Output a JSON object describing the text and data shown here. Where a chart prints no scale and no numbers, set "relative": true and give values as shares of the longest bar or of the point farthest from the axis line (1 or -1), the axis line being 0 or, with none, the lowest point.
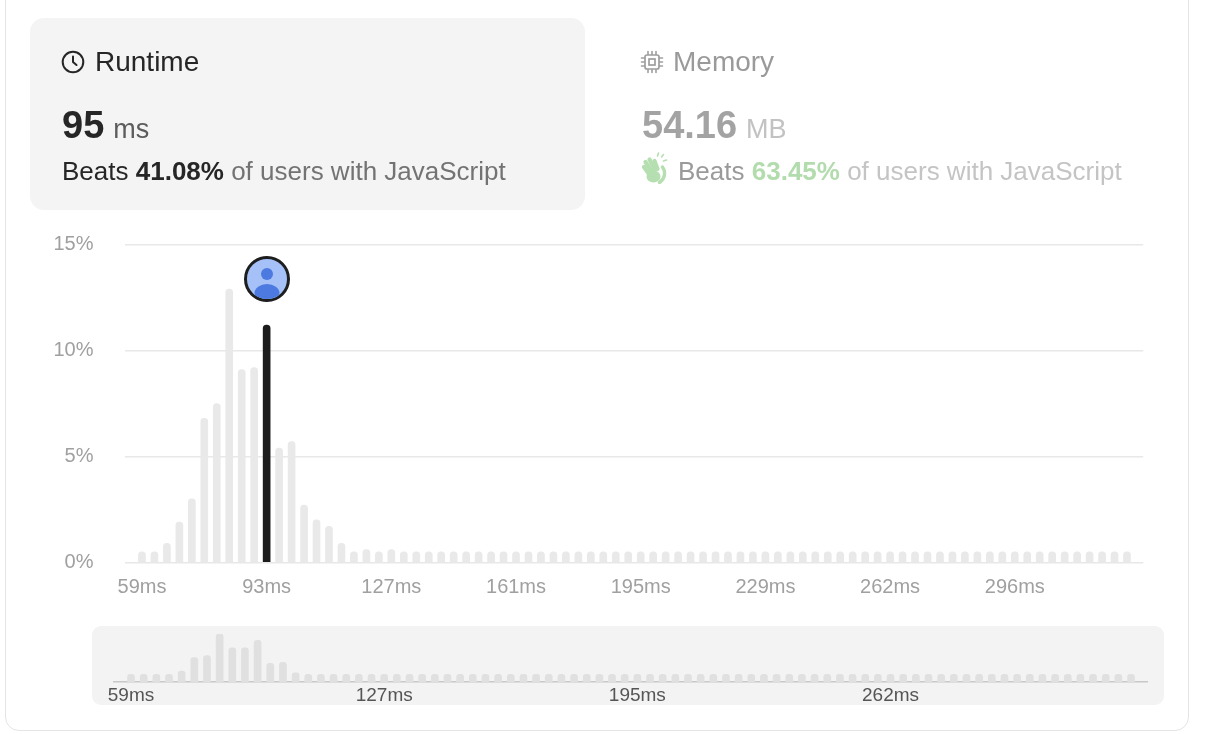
{
  "chart_data": [
    {
      "type": "other",
      "title": "Runtime",
      "annotations": [
        "95 ms",
        "Beats 41.08% of users with JavaScript"
      ]
    },
    {
      "type": "other",
      "title": "Memory",
      "annotations": [
        "54.16 MB",
        "Beats 63.45% of users with JavaScript"
      ]
    },
    {
      "type": "bar",
      "categories": [
        "59ms",
        null,
        null,
        null,
        null,
        null,
        null,
        null,
        null,
        null,
        "93ms",
        null,
        null,
        null,
        null,
        null,
        null,
        null,
        null,
        null,
        "127ms",
        null,
        null,
        null,
        null,
        null,
        null,
        null,
        null,
        null,
        "161ms",
        null,
        null,
        null,
        null,
        null,
        null,
        null,
        null,
        null,
        "195ms",
        null,
        null,
        null,
        null,
        null,
        null,
        null,
        null,
        null,
        "229ms",
        null,
        null,
        null,
        null,
        null,
        null,
        null,
        null,
        null,
        "262ms",
        null,
        null,
        null,
        null,
        null,
        null,
        null,
        null,
        null,
        "296ms",
        null,
        null,
        null,
        null,
        null,
        null,
        null,
        null,
        null
      ],
      "values": [
        0.5,
        0.5,
        0.9,
        1.9,
        3.0,
        6.8,
        7.5,
        12.9,
        9.1,
        9.2,
        11.2,
        5.4,
        5.7,
        2.7,
        2.0,
        1.7,
        0.9,
        0.5,
        0.6,
        0.5,
        0.6,
        0.5,
        0.5,
        0.5,
        0.5,
        0.5,
        0.5,
        0.5,
        0.5,
        0.5,
        0.5,
        0.5,
        0.5,
        0.5,
        0.5,
        0.5,
        0.5,
        0.5,
        0.5,
        0.5,
        0.5,
        0.5,
        0.5,
        0.5,
        0.5,
        0.5,
        0.5,
        0.5,
        0.5,
        0.5,
        0.5,
        0.5,
        0.5,
        0.5,
        0.5,
        0.5,
        0.5,
        0.5,
        0.5,
        0.5,
        0.5,
        0.5,
        0.5,
        0.5,
        0.5,
        0.5,
        0.5,
        0.5,
        0.5,
        0.5,
        0.5,
        0.5,
        0.5,
        0.5,
        0.5,
        0.5,
        0.5,
        0.5,
        0.5,
        0.5
      ],
      "colors": [
        "#e9e9e9",
        "#e9e9e9",
        "#e9e9e9",
        "#e9e9e9",
        "#e9e9e9",
        "#e9e9e9",
        "#e9e9e9",
        "#e9e9e9",
        "#e9e9e9",
        "#e9e9e9",
        "#1c1c1c",
        "#e9e9e9",
        "#e9e9e9",
        "#e9e9e9",
        "#e9e9e9",
        "#e9e9e9",
        "#e9e9e9",
        "#e9e9e9",
        "#e9e9e9",
        "#e9e9e9",
        "#e9e9e9",
        "#e9e9e9",
        "#e9e9e9",
        "#e9e9e9",
        "#e9e9e9",
        "#e9e9e9",
        "#e9e9e9",
        "#e9e9e9",
        "#e9e9e9",
        "#e9e9e9",
        "#e9e9e9",
        "#e9e9e9",
        "#e9e9e9",
        "#e9e9e9",
        "#e9e9e9",
        "#e9e9e9",
        "#e9e9e9",
        "#e9e9e9",
        "#e9e9e9",
        "#e9e9e9",
        "#e9e9e9",
        "#e9e9e9",
        "#e9e9e9",
        "#e9e9e9",
        "#e9e9e9",
        "#e9e9e9",
        "#e9e9e9",
        "#e9e9e9",
        "#e9e9e9",
        "#e9e9e9",
        "#e9e9e9",
        "#e9e9e9",
        "#e9e9e9",
        "#e9e9e9",
        "#e9e9e9",
        "#e9e9e9",
        "#e9e9e9",
        "#e9e9e9",
        "#e9e9e9",
        "#e9e9e9",
        "#e9e9e9",
        "#e9e9e9",
        "#e9e9e9",
        "#e9e9e9",
        "#e9e9e9",
        "#e9e9e9",
        "#e9e9e9",
        "#e9e9e9",
        "#e9e9e9",
        "#e9e9e9",
        "#e9e9e9",
        "#e9e9e9",
        "#e9e9e9",
        "#e9e9e9",
        "#e9e9e9",
        "#e9e9e9",
        "#e9e9e9",
        "#e9e9e9",
        "#e9e9e9",
        "#e9e9e9"
      ],
      "ylim": [
        0,
        15
      ],
      "yticks": [
        {
          "value": 0,
          "label": "0%"
        },
        {
          "value": 5,
          "label": "5%"
        },
        {
          "value": 10,
          "label": "10%"
        },
        {
          "value": 15,
          "label": "15%"
        }
      ],
      "grid": "y"
    },
    {
      "type": "bar",
      "relative": true,
      "categories": [
        "59ms",
        null,
        null,
        null,
        null,
        null,
        null,
        null,
        null,
        null,
        null,
        null,
        null,
        null,
        null,
        null,
        null,
        null,
        null,
        null,
        "127ms",
        null,
        null,
        null,
        null,
        null,
        null,
        null,
        null,
        null,
        null,
        null,
        null,
        null,
        null,
        null,
        null,
        null,
        null,
        null,
        "195ms",
        null,
        null,
        null,
        null,
        null,
        null,
        null,
        null,
        null,
        null,
        null,
        null,
        null,
        null,
        null,
        null,
        null,
        null,
        null,
        "262ms",
        null,
        null,
        null,
        null,
        null,
        null,
        null,
        null,
        null,
        null,
        null,
        null,
        null,
        null,
        null,
        null,
        null,
        null,
        null
      ],
      "values": [
        0.16,
        0.16,
        0.16,
        0.16,
        0.23,
        0.51,
        0.55,
        1,
        0.71,
        0.71,
        0.87,
        0.39,
        0.41,
        0.19,
        0.16,
        0.16,
        0.16,
        0.16,
        0.16,
        0.16,
        0.16,
        0.16,
        0.16,
        0.16,
        0.16,
        0.16,
        0.16,
        0.16,
        0.16,
        0.16,
        0.16,
        0.16,
        0.16,
        0.16,
        0.16,
        0.16,
        0.16,
        0.16,
        0.16,
        0.16,
        0.16,
        0.16,
        0.16,
        0.16,
        0.16,
        0.16,
        0.16,
        0.16,
        0.16,
        0.16,
        0.16,
        0.16,
        0.16,
        0.16,
        0.16,
        0.16,
        0.16,
        0.16,
        0.16,
        0.16,
        0.16,
        0.16,
        0.16,
        0.16,
        0.16,
        0.16,
        0.16,
        0.16,
        0.16,
        0.16,
        0.16,
        0.16,
        0.16,
        0.16,
        0.16,
        0.16,
        0.16,
        0.16,
        0.16,
        0.16
      ],
      "color": "#e0e0e0"
    }
  ]
}
